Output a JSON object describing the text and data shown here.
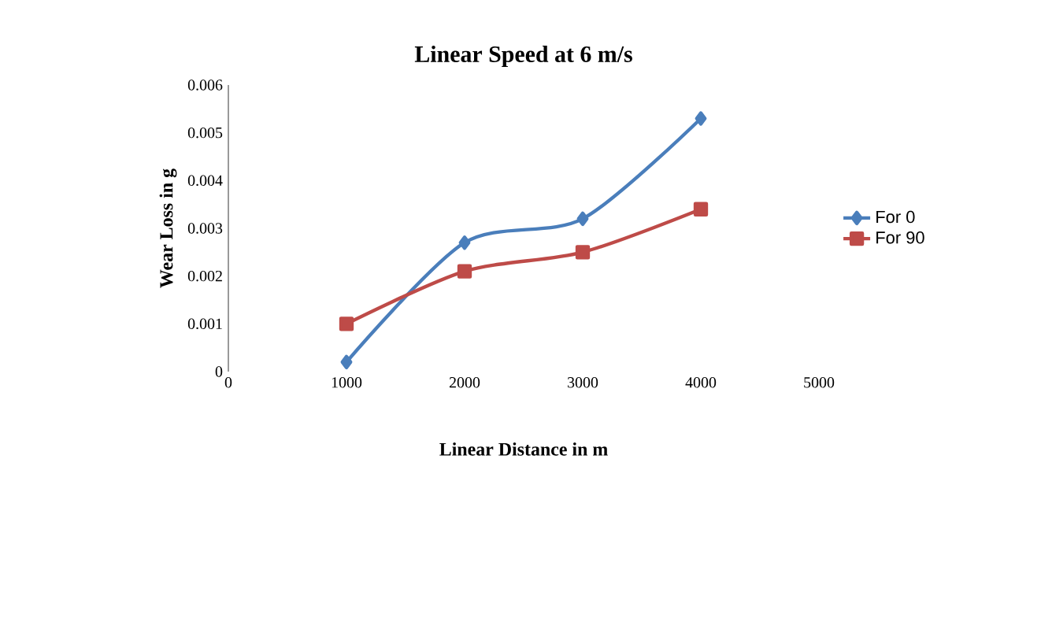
{
  "chart_data": {
    "type": "line",
    "title": "Linear Speed at 6 m/s",
    "xlabel": "Linear Distance in m",
    "ylabel": "Wear Loss in g",
    "x": [
      1000,
      2000,
      3000,
      4000
    ],
    "series": [
      {
        "name": "For 0",
        "color": "#4a7ebb",
        "values": [
          0.0002,
          0.0027,
          0.0032,
          0.0053
        ],
        "marker": "diamond"
      },
      {
        "name": "For 90",
        "color": "#be4b48",
        "values": [
          0.001,
          0.0021,
          0.0025,
          0.0034
        ],
        "marker": "square"
      }
    ],
    "xlim": [
      0,
      5000
    ],
    "xticks": [
      0,
      1000,
      2000,
      3000,
      4000,
      5000
    ],
    "ylim": [
      0,
      0.006
    ],
    "yticks": [
      0,
      0.001,
      0.002,
      0.003,
      0.004,
      0.005,
      0.006
    ],
    "legend": "right",
    "grid": false
  }
}
